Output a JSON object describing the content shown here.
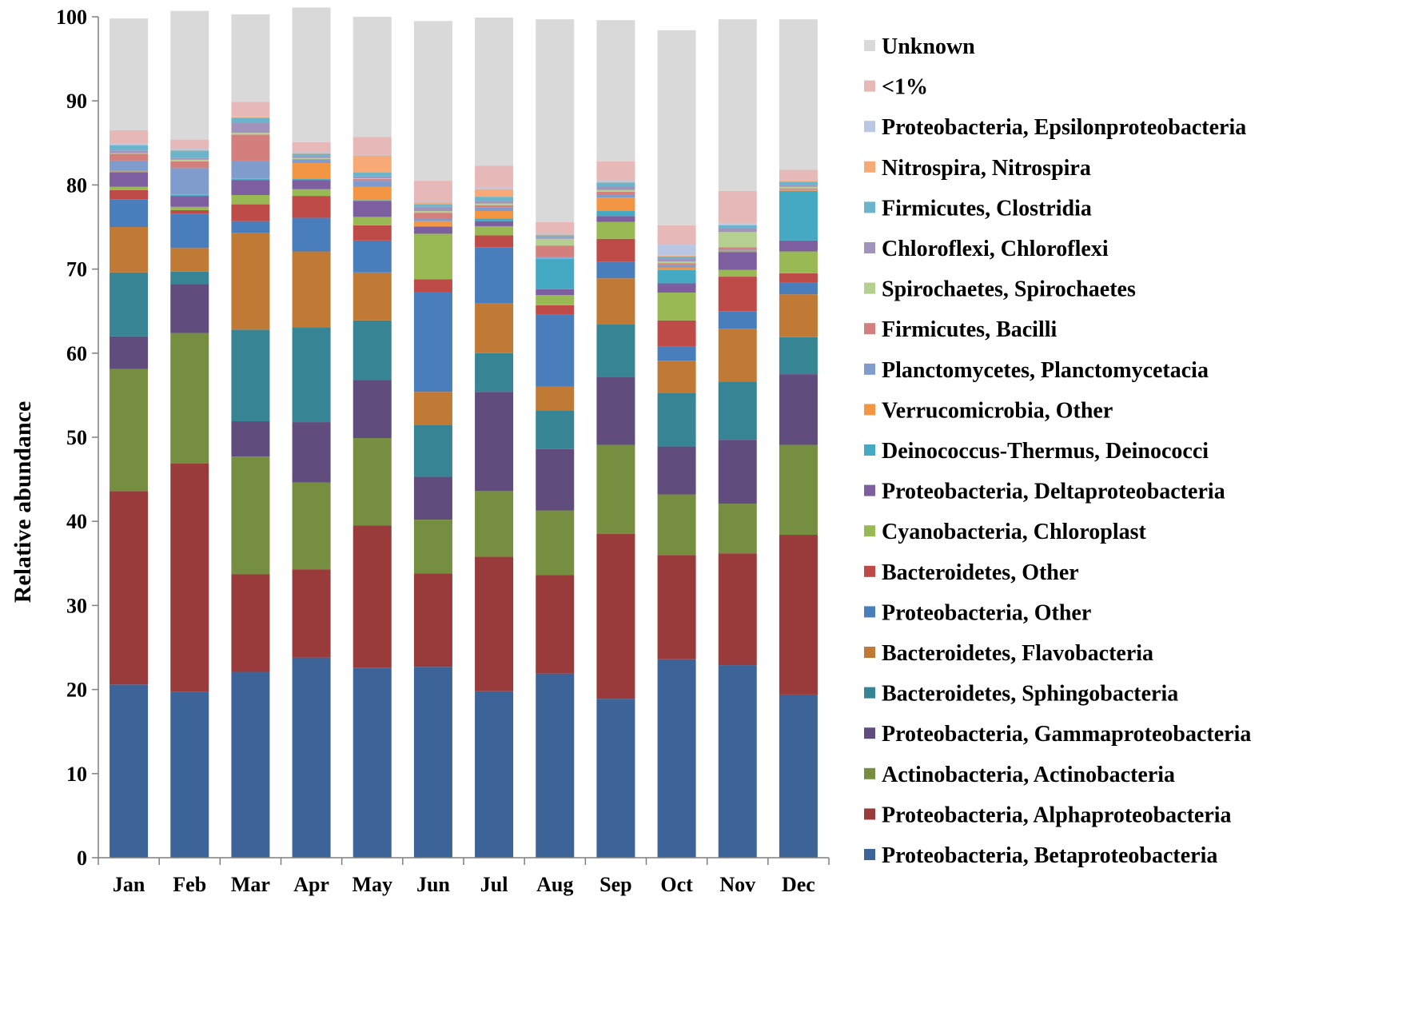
{
  "chart_data": {
    "type": "bar",
    "stacked": true,
    "title": "",
    "xlabel": "",
    "ylabel": "Relative abundance",
    "ylim": [
      0,
      100
    ],
    "yticks": [
      0,
      10,
      20,
      30,
      40,
      50,
      60,
      70,
      80,
      90,
      100
    ],
    "grid": false,
    "legend_position": "right",
    "categories": [
      "Jan",
      "Feb",
      "Mar",
      "Apr",
      "May",
      "Jun",
      "Jul",
      "Aug",
      "Sep",
      "Oct",
      "Nov",
      "Dec"
    ],
    "series": [
      {
        "name": "Proteobacteria, Betaproteobacteria",
        "color": "#3D6498",
        "values": [
          20.6,
          19.7,
          22.1,
          23.8,
          22.6,
          22.7,
          19.8,
          21.9,
          18.9,
          23.6,
          22.9,
          19.4
        ]
      },
      {
        "name": "Proteobacteria, Alphaproteobacteria",
        "color": "#983B3A",
        "values": [
          23.0,
          27.2,
          11.6,
          10.5,
          16.9,
          11.1,
          16.0,
          11.7,
          19.6,
          12.4,
          13.3,
          19.0
        ]
      },
      {
        "name": "Actinobacteria, Actinobacteria",
        "color": "#768E3F",
        "values": [
          14.5,
          15.5,
          14.0,
          10.3,
          10.4,
          6.4,
          7.8,
          7.7,
          10.6,
          7.2,
          5.9,
          10.7
        ]
      },
      {
        "name": "Proteobacteria, Gammaproteobacteria",
        "color": "#614C7E",
        "values": [
          3.9,
          5.8,
          4.2,
          7.2,
          6.9,
          5.1,
          11.8,
          7.3,
          8.1,
          5.7,
          7.6,
          8.4
        ]
      },
      {
        "name": "Bacteroidetes, Sphingobacteria",
        "color": "#378494",
        "values": [
          7.6,
          1.5,
          10.9,
          11.3,
          7.1,
          6.2,
          4.6,
          4.6,
          6.2,
          6.4,
          6.9,
          4.4
        ]
      },
      {
        "name": "Bacteroidetes, Flavobacteria",
        "color": "#C17A36",
        "values": [
          5.4,
          2.8,
          11.5,
          9.0,
          5.7,
          3.9,
          5.9,
          2.8,
          5.5,
          3.8,
          6.3,
          5.1
        ]
      },
      {
        "name": "Proteobacteria, Other",
        "color": "#4A7DBB",
        "values": [
          3.3,
          4.1,
          1.4,
          4.0,
          3.8,
          11.9,
          6.7,
          8.6,
          2.0,
          1.7,
          2.1,
          1.4
        ]
      },
      {
        "name": "Bacteroidetes, Other",
        "color": "#BE4B48",
        "values": [
          1.1,
          0.4,
          2.0,
          2.6,
          1.8,
          1.5,
          1.4,
          1.1,
          2.7,
          3.1,
          4.1,
          1.1
        ]
      },
      {
        "name": "Cyanobacteria, Chloroplast",
        "color": "#98B954",
        "values": [
          0.4,
          0.4,
          1.1,
          0.8,
          1.0,
          5.4,
          1.1,
          1.2,
          2.0,
          3.3,
          0.8,
          2.6
        ]
      },
      {
        "name": "Proteobacteria, Deltaproteobacteria",
        "color": "#7D5FA0",
        "values": [
          1.7,
          1.3,
          1.8,
          1.1,
          1.9,
          0.8,
          0.6,
          0.7,
          0.7,
          1.1,
          2.1,
          1.3
        ]
      },
      {
        "name": "Deinococcus-Thermus, Deinococci",
        "color": "#45A9C4",
        "values": [
          0.1,
          0.1,
          0.1,
          0.1,
          0.1,
          0.1,
          0.3,
          3.6,
          0.6,
          1.6,
          0.1,
          5.9
        ]
      },
      {
        "name": "Verrucomicrobia, Other",
        "color": "#F39644",
        "values": [
          0.1,
          0.1,
          0.1,
          1.9,
          1.6,
          0.6,
          0.9,
          0.1,
          1.6,
          0.3,
          0.1,
          0.1
        ]
      },
      {
        "name": "Planctomycetes, Planctomycetacia",
        "color": "#7F9CCC",
        "values": [
          1.2,
          3.1,
          2.0,
          0.4,
          0.7,
          0.3,
          0.4,
          0.1,
          0.3,
          0.3,
          0.1,
          0.1
        ]
      },
      {
        "name": "Firmicutes, Bacilli",
        "color": "#D27F7E",
        "values": [
          0.8,
          0.8,
          3.2,
          0.1,
          0.2,
          0.7,
          0.3,
          1.4,
          0.4,
          0.2,
          0.3,
          0.1
        ]
      },
      {
        "name": "Spirochaetes, Spirochaetes",
        "color": "#B5CF90",
        "values": [
          0.1,
          0.2,
          0.2,
          0.1,
          0.1,
          0.2,
          0.2,
          0.8,
          0.2,
          0.2,
          1.8,
          0.2
        ]
      },
      {
        "name": "Chloroflexi, Chloroflexi",
        "color": "#A293BD",
        "values": [
          0.3,
          0.2,
          1.2,
          0.2,
          0.2,
          0.5,
          0.3,
          0.2,
          0.4,
          0.3,
          0.5,
          0.2
        ]
      },
      {
        "name": "Firmicutes, Clostridia",
        "color": "#6CB4CC",
        "values": [
          0.6,
          0.9,
          0.6,
          0.3,
          0.5,
          0.3,
          0.5,
          0.2,
          0.5,
          0.3,
          0.3,
          0.4
        ]
      },
      {
        "name": "Nitrospira, Nitrospira",
        "color": "#F7AA76",
        "values": [
          0.1,
          0.1,
          0.1,
          0.1,
          2.0,
          0.2,
          0.9,
          0.1,
          0.1,
          0.1,
          0.1,
          0.1
        ]
      },
      {
        "name": "Proteobacteria, Epsilonproteobacteria",
        "color": "#B9C7E3",
        "values": [
          0.1,
          0.1,
          0.1,
          0.1,
          0.1,
          0.1,
          0.2,
          0.1,
          0.1,
          1.3,
          0.2,
          0.1
        ]
      },
      {
        "name": "<1%",
        "color": "#E6B8B7",
        "values": [
          1.6,
          1.1,
          1.7,
          1.2,
          2.1,
          2.5,
          2.6,
          1.4,
          2.3,
          2.3,
          3.8,
          1.2
        ]
      },
      {
        "name": "Unknown",
        "color": "#D9D9D9",
        "values": [
          13.3,
          15.3,
          10.4,
          16.0,
          14.3,
          19.0,
          17.6,
          24.1,
          16.8,
          23.2,
          20.4,
          17.9
        ]
      }
    ]
  }
}
